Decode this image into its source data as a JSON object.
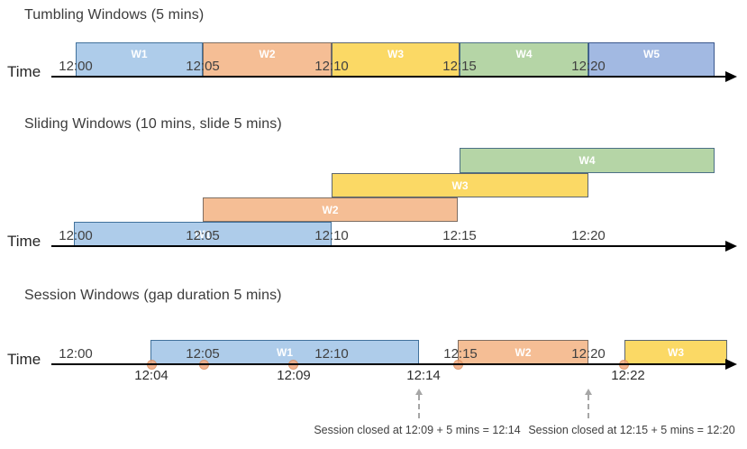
{
  "colors": {
    "blue": "#AECCEA",
    "blue_border": "#41719C",
    "orange": "#F5BE95",
    "orange_border": "#7E6E62",
    "yellow": "#FBD965",
    "yellow_border": "#5C6670",
    "green": "#B5D5A6",
    "green_border": "#4C7086",
    "periwinkle": "#A2B9E2",
    "periwinkle_border": "#39568D",
    "dot": "#F1A87E",
    "dot_border": "#DD8E5C",
    "axis": "#000000",
    "tick_text": "#404040",
    "window_text": "#FFFFFF",
    "dashed_arrow": "#A6A6A6"
  },
  "sections": {
    "tumbling": {
      "title": "Tumbling Windows (5 mins)",
      "time_label": "Time",
      "ticks": [
        "12:00",
        "12:05",
        "12:10",
        "12:15",
        "12:20"
      ],
      "windows": [
        {
          "label": "W1",
          "color": "blue"
        },
        {
          "label": "W2",
          "color": "orange"
        },
        {
          "label": "W3",
          "color": "yellow"
        },
        {
          "label": "W4",
          "color": "green"
        },
        {
          "label": "W5",
          "color": "periwinkle"
        }
      ]
    },
    "sliding": {
      "title": "Sliding Windows (10 mins, slide 5 mins)",
      "time_label": "Time",
      "ticks": [
        "12:00",
        "12:05",
        "12:10",
        "12:15",
        "12:20"
      ],
      "windows": [
        {
          "label": "W1",
          "color": "blue"
        },
        {
          "label": "W2",
          "color": "orange"
        },
        {
          "label": "W3",
          "color": "yellow"
        },
        {
          "label": "W4",
          "color": "green"
        }
      ]
    },
    "session": {
      "title": "Session Windows (gap duration 5 mins)",
      "time_label": "Time",
      "ticks": [
        "12:00",
        "12:05",
        "12:10",
        "12:15",
        "12:20"
      ],
      "event_labels": [
        "12:04",
        "12:09",
        "12:14",
        "12:22"
      ],
      "windows": [
        {
          "label": "W1",
          "color": "blue"
        },
        {
          "label": "W2",
          "color": "orange"
        },
        {
          "label": "W3",
          "color": "yellow"
        }
      ],
      "annotations": [
        "Session closed at 12:09 + 5 mins = 12:14",
        "Session closed at 12:15 + 5 mins = 12:20"
      ]
    }
  }
}
